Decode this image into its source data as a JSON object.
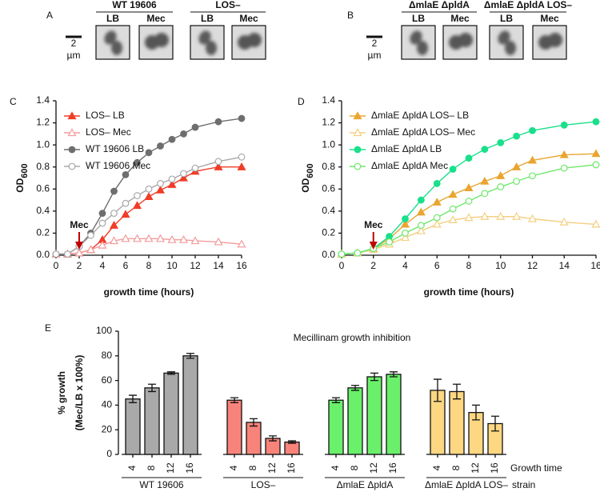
{
  "micrographs": [
    {
      "label": "A",
      "scale_bar": "2",
      "scale_unit": "µm",
      "groups": [
        {
          "title": "WT 19606",
          "media": [
            "LB",
            "Mec"
          ]
        },
        {
          "title": "LOS–",
          "media": [
            "LB",
            "Mec"
          ]
        }
      ]
    },
    {
      "label": "B",
      "scale_bar": "2",
      "scale_unit": "µm",
      "groups": [
        {
          "title": "ΔmlaE ΔpldA",
          "media": [
            "LB",
            "Mec"
          ]
        },
        {
          "title": "ΔmlaE ΔpldA LOS–",
          "media": [
            "LB",
            "Mec"
          ]
        }
      ]
    }
  ],
  "chart_data": [
    {
      "type": "line",
      "panel": "C",
      "xlabel": "growth time (hours)",
      "ylabel": "OD",
      "ylabel_subscript": "600",
      "x": [
        0,
        1,
        2,
        3,
        4,
        5,
        6,
        7,
        8,
        9,
        10,
        11,
        12,
        14,
        16
      ],
      "xlim": [
        0,
        16
      ],
      "xticks": [
        0,
        2,
        4,
        6,
        8,
        10,
        12,
        14,
        16
      ],
      "ylim": [
        0,
        1.4
      ],
      "yticks": [
        {
          "value": 0,
          "label": "0.0"
        },
        0.2,
        0.4,
        0.6,
        0.8,
        {
          "value": 1,
          "label": "1.0"
        },
        1.2,
        1.4
      ],
      "annotations": [
        {
          "text": "Mec",
          "x": 2,
          "color": "#c00000"
        }
      ],
      "series": [
        {
          "name": "LOS– LB",
          "color": "#f03c28",
          "marker": "triangle",
          "filled": true,
          "values": [
            0.01,
            0.01,
            0.02,
            0.05,
            0.14,
            0.27,
            0.37,
            0.45,
            0.53,
            0.59,
            0.64,
            0.7,
            0.76,
            0.8,
            0.8
          ]
        },
        {
          "name": "LOS– Mec",
          "color": "#f29c9c",
          "marker": "triangle",
          "filled": false,
          "values": [
            0.01,
            0.01,
            0.02,
            0.05,
            0.09,
            0.13,
            0.15,
            0.15,
            0.15,
            0.15,
            0.14,
            0.14,
            0.13,
            0.12,
            0.1
          ]
        },
        {
          "name": "WT 19606 LB",
          "color": "#6e6e6e",
          "marker": "circle",
          "filled": true,
          "values": [
            0.01,
            0.01,
            0.08,
            0.2,
            0.38,
            0.58,
            0.73,
            0.84,
            0.93,
            0.99,
            1.05,
            1.1,
            1.16,
            1.21,
            1.24
          ]
        },
        {
          "name": "WT 19606 Mec",
          "color": "#a8a8a8",
          "marker": "circle",
          "filled": false,
          "values": [
            0.01,
            0.01,
            0.08,
            0.18,
            0.29,
            0.38,
            0.47,
            0.54,
            0.6,
            0.65,
            0.69,
            0.74,
            0.79,
            0.85,
            0.89
          ]
        }
      ]
    },
    {
      "type": "line",
      "panel": "D",
      "xlabel": "growth time (hours)",
      "ylabel": "OD",
      "ylabel_subscript": "600",
      "x": [
        0,
        1,
        2,
        3,
        4,
        5,
        6,
        7,
        8,
        9,
        10,
        11,
        12,
        14,
        16
      ],
      "xlim": [
        0,
        16
      ],
      "xticks": [
        0,
        2,
        4,
        6,
        8,
        10,
        12,
        14,
        16
      ],
      "ylim": [
        0,
        1.4
      ],
      "yticks": [
        {
          "value": 0,
          "label": "0.0"
        },
        0.2,
        0.4,
        0.6,
        0.8,
        {
          "value": 1,
          "label": "1.0"
        },
        1.2,
        1.4
      ],
      "annotations": [
        {
          "text": "Mec",
          "x": 2,
          "color": "#c00000"
        }
      ],
      "series": [
        {
          "name": "ΔmlaE ΔpldA LOS– LB",
          "color": "#e8a530",
          "marker": "triangle",
          "filled": true,
          "values": [
            0.01,
            0.02,
            0.06,
            0.15,
            0.28,
            0.39,
            0.48,
            0.55,
            0.61,
            0.67,
            0.72,
            0.8,
            0.86,
            0.91,
            0.92
          ]
        },
        {
          "name": "ΔmlaE ΔpldA LOS– Mec",
          "color": "#f5cf80",
          "marker": "triangle",
          "filled": false,
          "values": [
            0.01,
            0.02,
            0.05,
            0.1,
            0.16,
            0.22,
            0.28,
            0.32,
            0.34,
            0.35,
            0.35,
            0.35,
            0.33,
            0.3,
            0.28
          ]
        },
        {
          "name": "ΔmlaE ΔpldA LB",
          "color": "#19e08a",
          "marker": "circle",
          "filled": true,
          "values": [
            0.01,
            0.02,
            0.06,
            0.17,
            0.33,
            0.5,
            0.65,
            0.78,
            0.88,
            0.96,
            1.02,
            1.08,
            1.13,
            1.18,
            1.21
          ]
        },
        {
          "name": "ΔmlaE ΔpldA Mec",
          "color": "#6ee86a",
          "marker": "circle",
          "filled": false,
          "values": [
            0.01,
            0.02,
            0.06,
            0.12,
            0.2,
            0.27,
            0.34,
            0.42,
            0.49,
            0.56,
            0.62,
            0.67,
            0.72,
            0.79,
            0.82
          ]
        }
      ]
    },
    {
      "type": "bar",
      "panel": "E",
      "title": "Mecillinam growth inhibition",
      "ylabel": [
        "% growth",
        "(Mec/LB x 100%)"
      ],
      "xlabel": "Growth time",
      "group_label": "strain",
      "ylim": [
        0,
        100
      ],
      "yticks": [
        0,
        20,
        40,
        60,
        80,
        100
      ],
      "groups": [
        {
          "name": "WT 19606",
          "color": "#a9a9a9",
          "categories": [
            "4",
            "8",
            "12",
            "16"
          ],
          "values": [
            45,
            54,
            66,
            80
          ],
          "errors": [
            3,
            3,
            1,
            2
          ]
        },
        {
          "name": "LOS–",
          "color": "#f8837a",
          "categories": [
            "4",
            "8",
            "12",
            "16"
          ],
          "values": [
            44,
            26,
            13,
            10
          ],
          "errors": [
            2,
            3,
            2,
            1
          ]
        },
        {
          "name": "ΔmlaE ΔpldA",
          "color": "#6af06a",
          "categories": [
            "4",
            "8",
            "12",
            "16"
          ],
          "values": [
            44,
            54,
            63,
            65
          ],
          "errors": [
            2,
            2,
            3,
            2
          ]
        },
        {
          "name": "ΔmlaE ΔpldA LOS–",
          "color": "#fdd782",
          "categories": [
            "4",
            "8",
            "12",
            "16"
          ],
          "values": [
            52,
            51,
            34,
            25
          ],
          "errors": [
            9,
            6,
            6,
            6
          ]
        }
      ]
    }
  ]
}
